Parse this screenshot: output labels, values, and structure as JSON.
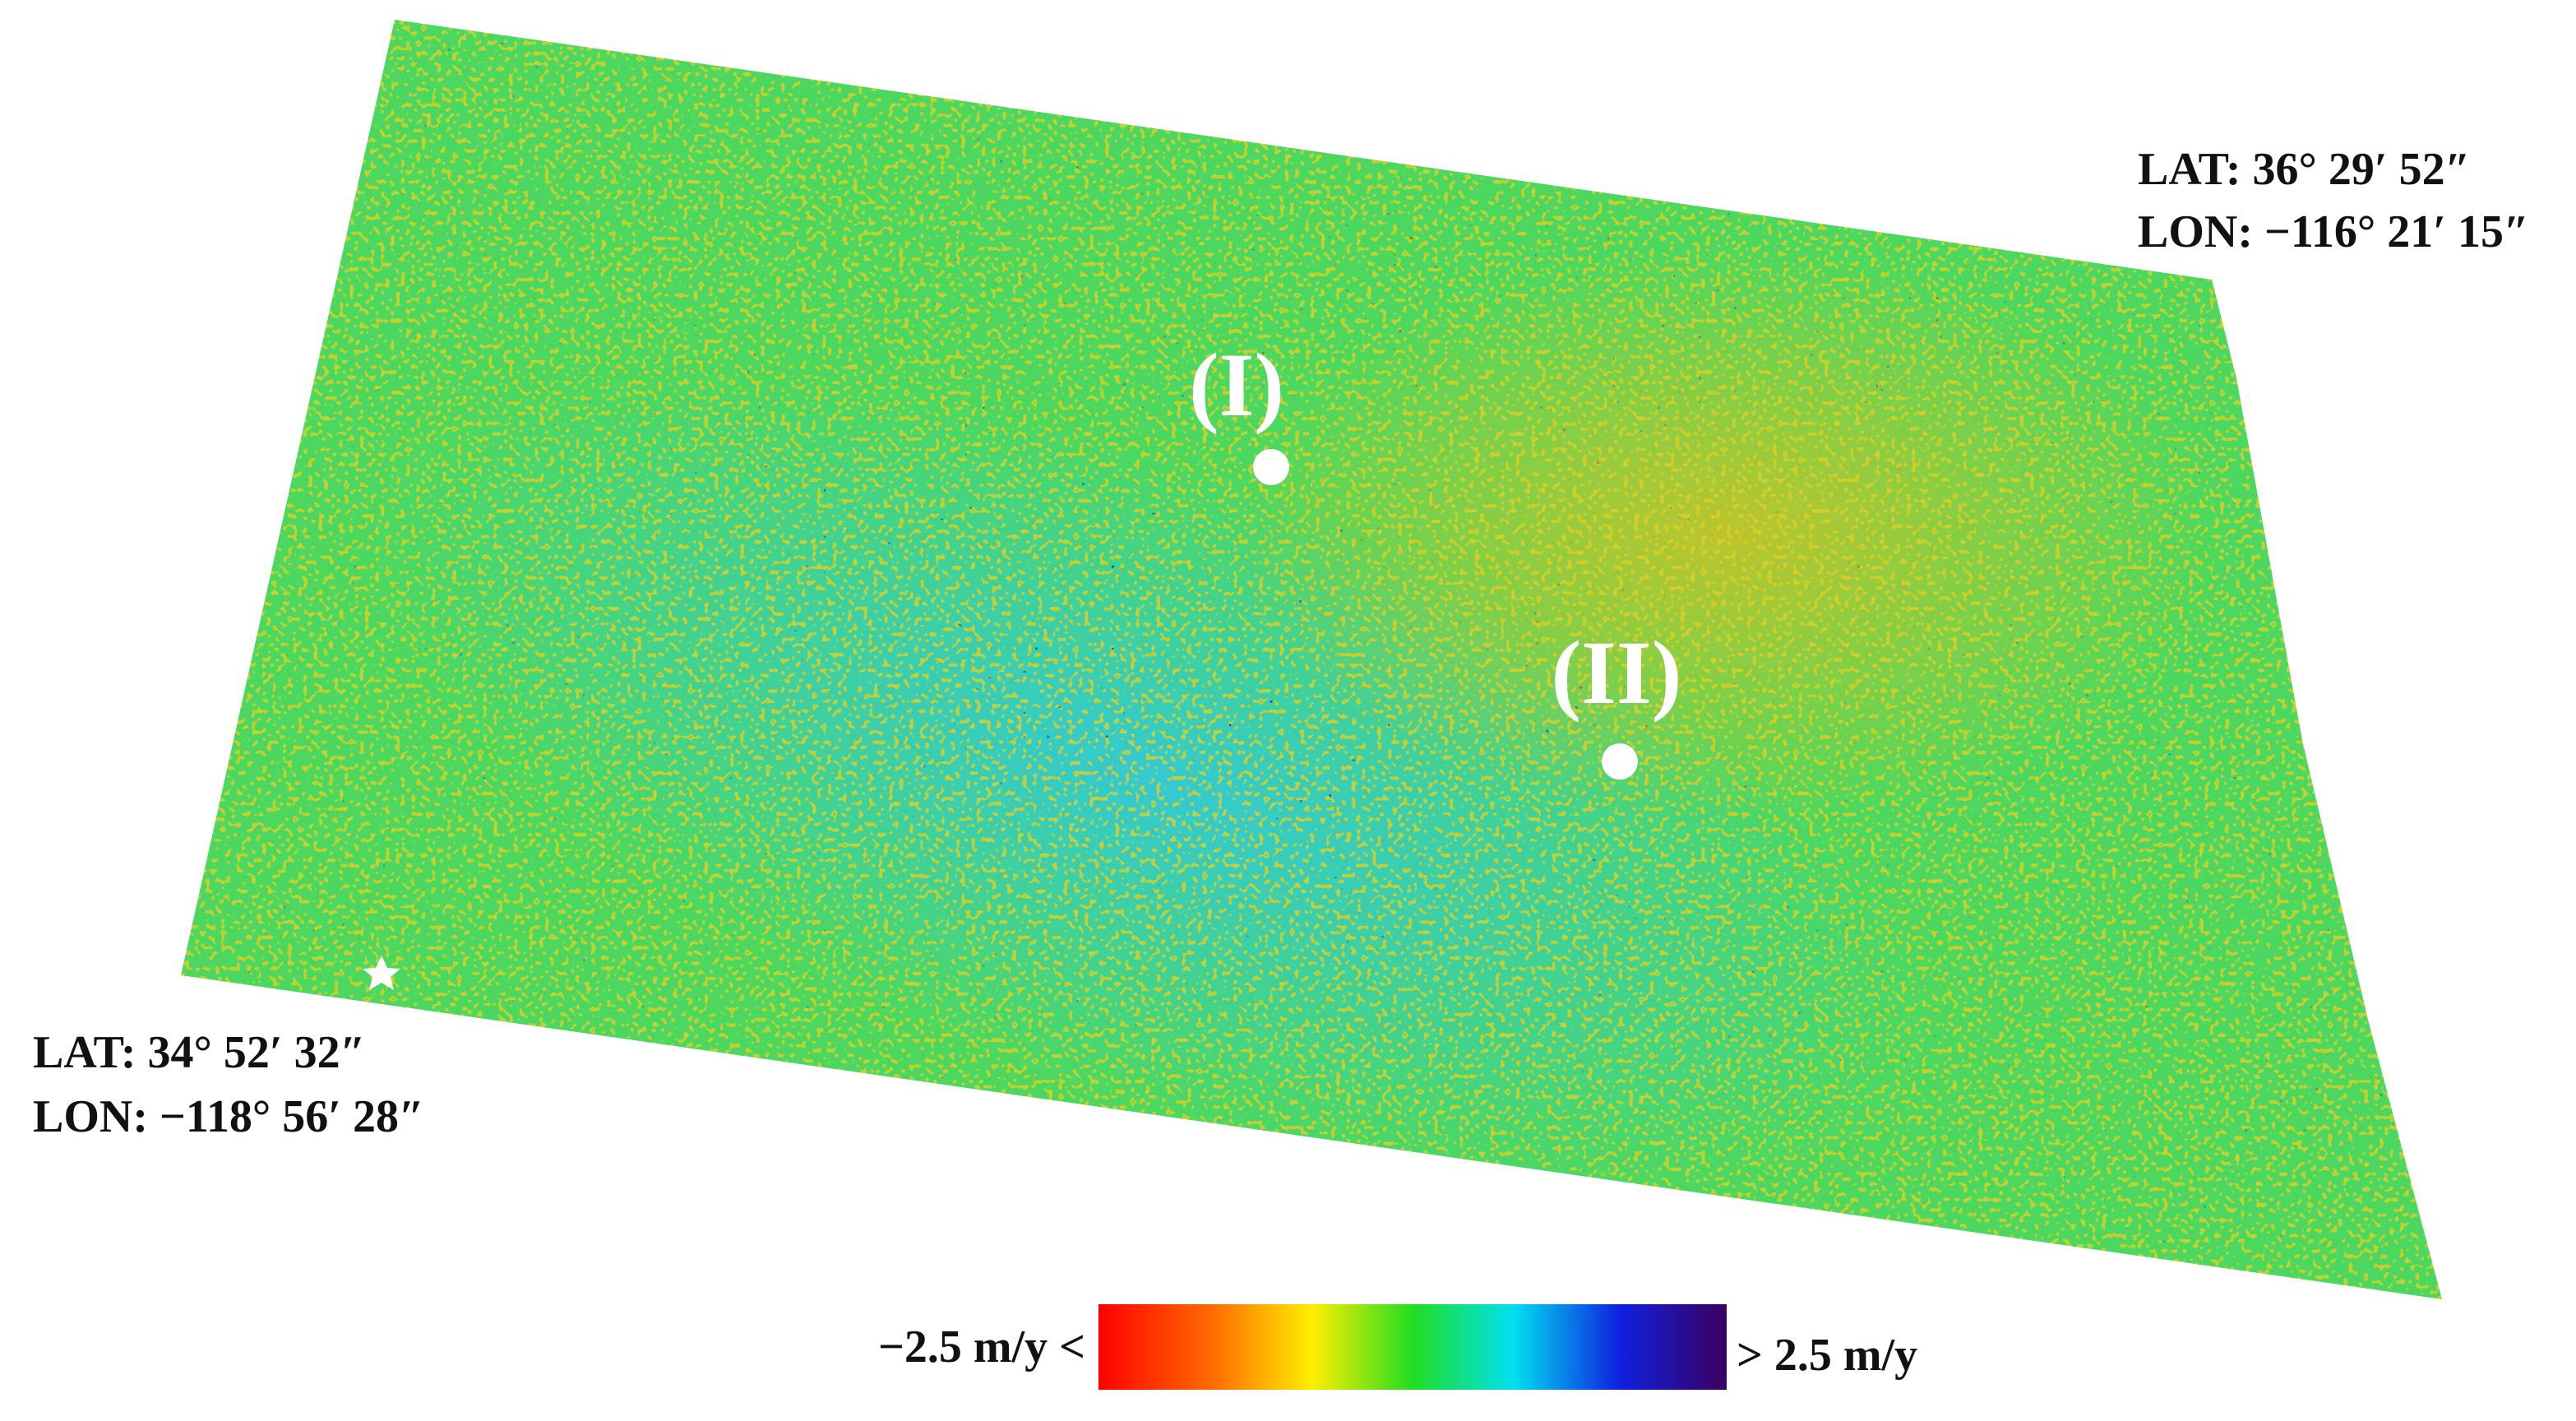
{
  "corner_ne": {
    "lat": "LAT: 36° 29′ 52″",
    "lon": "LON: −116° 21′ 15″"
  },
  "corner_sw": {
    "lat": "LAT: 34° 52′ 32″",
    "lon": "LON: −118° 56′ 28″"
  },
  "sites": [
    {
      "label": "(I)"
    },
    {
      "label": "(II)"
    }
  ],
  "colorbar": {
    "low_label": "−2.5 m/y <",
    "high_label": "> 2.5 m/y"
  }
}
